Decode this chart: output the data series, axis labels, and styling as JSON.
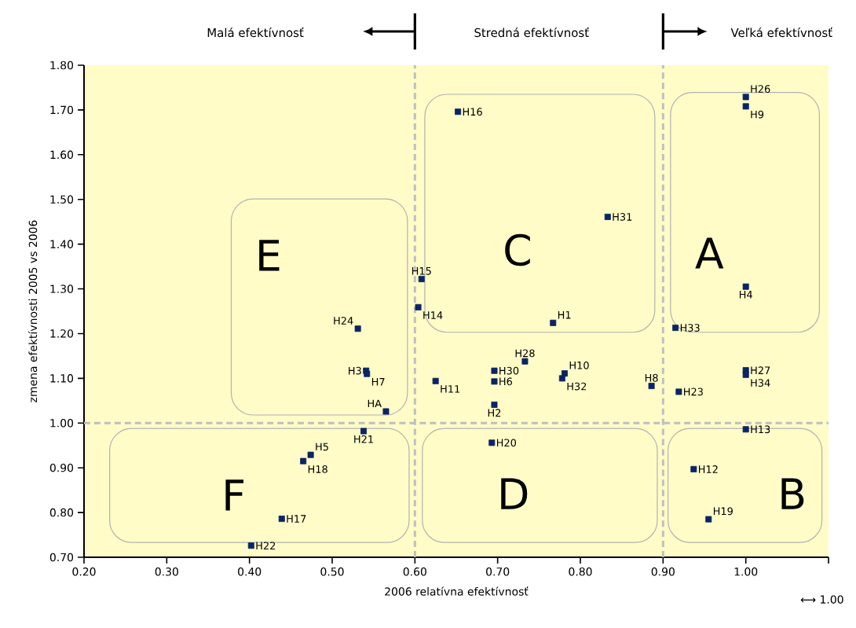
{
  "chart_data": {
    "type": "scatter",
    "xlabel": "2006 relatívna efektívnosť",
    "ylabel": "zmena efektívnosti 2005 vs 2006",
    "x": [
      0.652,
      0.833,
      1.0,
      1.0,
      1.0,
      0.608,
      0.604,
      0.767,
      0.915,
      0.733,
      0.696,
      0.696,
      0.781,
      0.778,
      0.625,
      0.886,
      0.919,
      1.0,
      1.0,
      0.696,
      1.0,
      0.693,
      0.937,
      0.955,
      0.531,
      0.541,
      0.542,
      0.565,
      0.538,
      0.474,
      0.465,
      0.439,
      0.402
    ],
    "values": [
      1.696,
      1.461,
      1.729,
      1.708,
      1.305,
      1.322,
      1.259,
      1.224,
      1.213,
      1.138,
      1.117,
      1.093,
      1.111,
      1.1,
      1.094,
      1.083,
      1.07,
      1.118,
      1.108,
      1.041,
      0.986,
      0.956,
      0.897,
      0.785,
      1.211,
      1.117,
      1.11,
      1.026,
      0.982,
      0.929,
      0.915,
      0.786,
      0.726
    ],
    "value_labels": [
      "H16",
      "H31",
      "H26",
      "H9",
      "H4",
      "H15",
      "H14",
      "H1",
      "H33",
      "H28",
      "H30",
      "H6",
      "H10",
      "H32",
      "H11",
      "H8",
      "H23",
      "H27",
      "H34",
      "H2",
      "H13",
      "H20",
      "H12",
      "H19",
      "H24",
      "H3",
      "H7",
      "HA",
      "H21",
      "H5",
      "H18",
      "H17",
      "H22"
    ],
    "color": "#0a2466",
    "marker": "square",
    "xlim": [
      0.2,
      1.1
    ],
    "ylim": [
      0.7,
      1.8
    ],
    "xticks": [
      {
        "value": 0.2,
        "label": "0.20"
      },
      {
        "value": 0.3,
        "label": "0.30"
      },
      {
        "value": 0.4,
        "label": "0.40"
      },
      {
        "value": 0.5,
        "label": "0.50"
      },
      {
        "value": 0.6,
        "label": "0.60"
      },
      {
        "value": 0.7,
        "label": "0.70"
      },
      {
        "value": 0.8,
        "label": "0.80"
      },
      {
        "value": 0.9,
        "label": "0.90"
      },
      {
        "value": 1.0,
        "label": "1.00"
      },
      {
        "value": 1.1,
        "label": null
      }
    ],
    "yticks": [
      {
        "value": 0.7,
        "label": "0.70"
      },
      {
        "value": 0.8,
        "label": "0.80"
      },
      {
        "value": 0.9,
        "label": "0.90"
      },
      {
        "value": 1.0,
        "label": "1.00"
      },
      {
        "value": 1.1,
        "label": "1.10"
      },
      {
        "value": 1.2,
        "label": "1.20"
      },
      {
        "value": 1.3,
        "label": "1.30"
      },
      {
        "value": 1.4,
        "label": "1.40"
      },
      {
        "value": 1.5,
        "label": "1.50"
      },
      {
        "value": 1.6,
        "label": "1.60"
      },
      {
        "value": 1.7,
        "label": "1.70"
      },
      {
        "value": 1.8,
        "label": "1.80"
      }
    ],
    "ref_lines": [
      {
        "axis": "x",
        "value": 0.6,
        "color": "#bfbfbf",
        "line_style": "dashed"
      },
      {
        "axis": "x",
        "value": 0.9,
        "color": "#bfbfbf",
        "line_style": "dashed"
      },
      {
        "axis": "y",
        "value": 1.0,
        "color": "#bfbfbf",
        "line_style": "dashed"
      }
    ],
    "annotations": [
      "Malá efektívnosť",
      "Stredná efektívnosť",
      "Veľká efektívnosť",
      "E",
      "C",
      "A",
      "F",
      "D",
      "B",
      "⟷ 1.00"
    ],
    "grid": false
  }
}
